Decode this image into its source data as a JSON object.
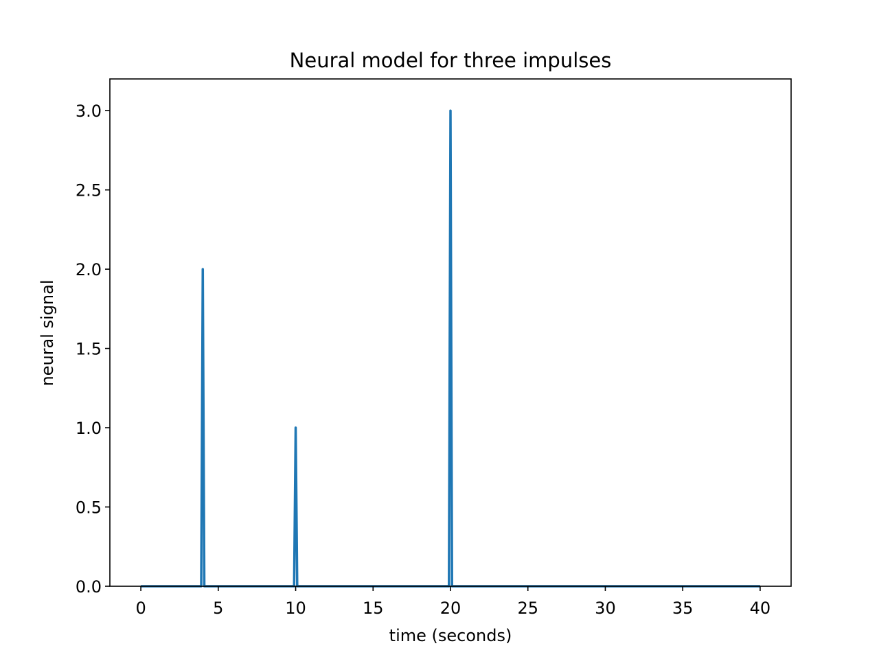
{
  "chart_data": {
    "type": "line",
    "title": "Neural model for three impulses",
    "xlabel": "time (seconds)",
    "ylabel": "neural signal",
    "xlim": [
      -2,
      42
    ],
    "ylim": [
      0,
      3.2
    ],
    "xticks": [
      0,
      5,
      10,
      15,
      20,
      25,
      30,
      35,
      40
    ],
    "yticks": [
      0.0,
      0.5,
      1.0,
      1.5,
      2.0,
      2.5,
      3.0
    ],
    "xtick_labels": [
      "0",
      "5",
      "10",
      "15",
      "20",
      "25",
      "30",
      "35",
      "40"
    ],
    "ytick_labels": [
      "0.0",
      "0.5",
      "1.0",
      "1.5",
      "2.0",
      "2.5",
      "3.0"
    ],
    "grid": false,
    "series": [
      {
        "color": "#1f77b4",
        "x": [
          0,
          3.9,
          4.0,
          4.1,
          9.9,
          10.0,
          10.1,
          19.9,
          20.0,
          20.1,
          40
        ],
        "y": [
          0,
          0,
          2.0,
          0,
          0,
          1.0,
          0,
          0,
          3.0,
          0,
          0
        ]
      }
    ]
  }
}
